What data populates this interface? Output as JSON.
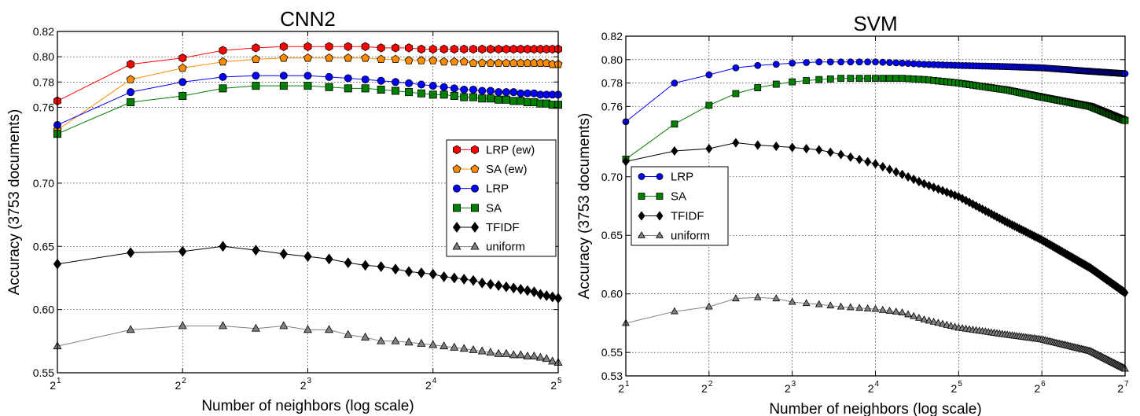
{
  "chart_data": [
    {
      "type": "line",
      "title": "CNN2",
      "xlabel": "Number of neighbors (log scale)",
      "ylabel": "Accuracy (3753 documents)",
      "xscale": "log2",
      "xlim": [
        2,
        32
      ],
      "ylim": [
        0.55,
        0.82
      ],
      "y_ticks": [
        "0.55",
        "0.60",
        "0.65",
        "0.70",
        "0.76",
        "0.78",
        "0.80",
        "0.82"
      ],
      "x_ticks": [
        {
          "base": "2",
          "exp": "1"
        },
        {
          "base": "2",
          "exp": "2"
        },
        {
          "base": "2",
          "exp": "3"
        },
        {
          "base": "2",
          "exp": "4"
        },
        {
          "base": "2",
          "exp": "5"
        }
      ],
      "grid": true,
      "legend_position": "right",
      "x": [
        2,
        3,
        4,
        5,
        6,
        7,
        8,
        9,
        10,
        11,
        12,
        13,
        14,
        15,
        16,
        17,
        18,
        19,
        20,
        21,
        22,
        23,
        24,
        25,
        26,
        27,
        28,
        29,
        30,
        31,
        32
      ],
      "series": [
        {
          "name": "LRP (ew)",
          "color": "#ff0000",
          "marker": "hexagon",
          "values": [
            0.765,
            0.794,
            0.799,
            0.805,
            0.807,
            0.808,
            0.808,
            0.808,
            0.808,
            0.808,
            0.807,
            0.807,
            0.807,
            0.806,
            0.806,
            0.806,
            0.806,
            0.806,
            0.806,
            0.806,
            0.806,
            0.806,
            0.806,
            0.806,
            0.806,
            0.806,
            0.806,
            0.806,
            0.806,
            0.806,
            0.806
          ]
        },
        {
          "name": "SA (ew)",
          "color": "#ff8c00",
          "marker": "pentagon",
          "values": [
            0.742,
            0.782,
            0.791,
            0.796,
            0.798,
            0.799,
            0.799,
            0.799,
            0.799,
            0.799,
            0.798,
            0.798,
            0.797,
            0.797,
            0.797,
            0.796,
            0.796,
            0.796,
            0.795,
            0.795,
            0.795,
            0.795,
            0.795,
            0.795,
            0.795,
            0.795,
            0.795,
            0.795,
            0.795,
            0.794,
            0.794
          ]
        },
        {
          "name": "LRP",
          "color": "#0000ff",
          "marker": "circle",
          "values": [
            0.746,
            0.772,
            0.78,
            0.784,
            0.785,
            0.785,
            0.785,
            0.784,
            0.783,
            0.782,
            0.781,
            0.78,
            0.779,
            0.778,
            0.777,
            0.776,
            0.775,
            0.774,
            0.774,
            0.773,
            0.773,
            0.772,
            0.772,
            0.772,
            0.771,
            0.771,
            0.771,
            0.77,
            0.77,
            0.77,
            0.77
          ]
        },
        {
          "name": "SA",
          "color": "#008000",
          "marker": "square",
          "values": [
            0.739,
            0.764,
            0.769,
            0.775,
            0.777,
            0.777,
            0.777,
            0.776,
            0.775,
            0.775,
            0.774,
            0.773,
            0.772,
            0.771,
            0.77,
            0.77,
            0.769,
            0.768,
            0.768,
            0.767,
            0.767,
            0.766,
            0.766,
            0.765,
            0.765,
            0.764,
            0.764,
            0.763,
            0.763,
            0.762,
            0.762
          ]
        },
        {
          "name": "TFIDF",
          "color": "#000000",
          "marker": "diamond",
          "values": [
            0.636,
            0.645,
            0.646,
            0.65,
            0.647,
            0.644,
            0.642,
            0.64,
            0.637,
            0.635,
            0.634,
            0.632,
            0.63,
            0.629,
            0.628,
            0.626,
            0.625,
            0.624,
            0.623,
            0.621,
            0.62,
            0.619,
            0.618,
            0.617,
            0.616,
            0.615,
            0.614,
            0.612,
            0.611,
            0.61,
            0.609
          ]
        },
        {
          "name": "uniform",
          "color": "#808080",
          "marker": "triangle",
          "values": [
            0.571,
            0.584,
            0.587,
            0.587,
            0.585,
            0.587,
            0.584,
            0.584,
            0.58,
            0.578,
            0.575,
            0.575,
            0.574,
            0.573,
            0.572,
            0.571,
            0.57,
            0.569,
            0.568,
            0.567,
            0.566,
            0.565,
            0.565,
            0.564,
            0.564,
            0.563,
            0.563,
            0.562,
            0.561,
            0.559,
            0.558
          ]
        }
      ]
    },
    {
      "type": "line",
      "title": "SVM",
      "xlabel": "Number of neighbors (log scale)",
      "ylabel": "Accuracy (3753 documents)",
      "xscale": "log2",
      "xlim": [
        2,
        128
      ],
      "ylim": [
        0.53,
        0.82
      ],
      "y_ticks": [
        "0.53",
        "0.55",
        "0.60",
        "0.65",
        "0.70",
        "0.76",
        "0.78",
        "0.80",
        "0.82"
      ],
      "x_ticks": [
        {
          "base": "2",
          "exp": "1"
        },
        {
          "base": "2",
          "exp": "2"
        },
        {
          "base": "2",
          "exp": "3"
        },
        {
          "base": "2",
          "exp": "4"
        },
        {
          "base": "2",
          "exp": "5"
        },
        {
          "base": "2",
          "exp": "6"
        },
        {
          "base": "2",
          "exp": "7"
        }
      ],
      "grid": true,
      "legend_position": "center-left",
      "x_start": 2,
      "x_end": 128,
      "series": [
        {
          "name": "LRP",
          "color": "#0000ff",
          "marker": "circle",
          "anchors": [
            [
              2,
              0.747
            ],
            [
              3,
              0.78
            ],
            [
              4,
              0.787
            ],
            [
              5,
              0.793
            ],
            [
              6,
              0.795
            ],
            [
              7,
              0.796
            ],
            [
              8,
              0.797
            ],
            [
              10,
              0.798
            ],
            [
              12,
              0.798
            ],
            [
              16,
              0.798
            ],
            [
              20,
              0.797
            ],
            [
              24,
              0.796
            ],
            [
              32,
              0.795
            ],
            [
              48,
              0.794
            ],
            [
              64,
              0.793
            ],
            [
              96,
              0.79
            ],
            [
              128,
              0.788
            ]
          ]
        },
        {
          "name": "SA",
          "color": "#008000",
          "marker": "square",
          "anchors": [
            [
              2,
              0.715
            ],
            [
              3,
              0.745
            ],
            [
              4,
              0.761
            ],
            [
              5,
              0.771
            ],
            [
              6,
              0.776
            ],
            [
              7,
              0.779
            ],
            [
              8,
              0.781
            ],
            [
              10,
              0.783
            ],
            [
              12,
              0.784
            ],
            [
              16,
              0.784
            ],
            [
              20,
              0.784
            ],
            [
              24,
              0.783
            ],
            [
              32,
              0.78
            ],
            [
              48,
              0.774
            ],
            [
              64,
              0.768
            ],
            [
              96,
              0.76
            ],
            [
              128,
              0.748
            ]
          ]
        },
        {
          "name": "TFIDF",
          "color": "#000000",
          "marker": "diamond",
          "anchors": [
            [
              2,
              0.713
            ],
            [
              3,
              0.722
            ],
            [
              4,
              0.724
            ],
            [
              5,
              0.729
            ],
            [
              6,
              0.727
            ],
            [
              7,
              0.726
            ],
            [
              8,
              0.725
            ],
            [
              10,
              0.723
            ],
            [
              12,
              0.719
            ],
            [
              16,
              0.711
            ],
            [
              20,
              0.702
            ],
            [
              24,
              0.694
            ],
            [
              32,
              0.683
            ],
            [
              48,
              0.661
            ],
            [
              64,
              0.646
            ],
            [
              96,
              0.622
            ],
            [
              128,
              0.601
            ]
          ]
        },
        {
          "name": "uniform",
          "color": "#808080",
          "marker": "triangle",
          "anchors": [
            [
              2,
              0.575
            ],
            [
              3,
              0.585
            ],
            [
              4,
              0.589
            ],
            [
              5,
              0.596
            ],
            [
              6,
              0.597
            ],
            [
              7,
              0.596
            ],
            [
              8,
              0.593
            ],
            [
              10,
              0.591
            ],
            [
              12,
              0.589
            ],
            [
              16,
              0.587
            ],
            [
              20,
              0.584
            ],
            [
              24,
              0.578
            ],
            [
              32,
              0.571
            ],
            [
              48,
              0.565
            ],
            [
              64,
              0.561
            ],
            [
              96,
              0.551
            ],
            [
              128,
              0.536
            ]
          ]
        }
      ]
    }
  ]
}
